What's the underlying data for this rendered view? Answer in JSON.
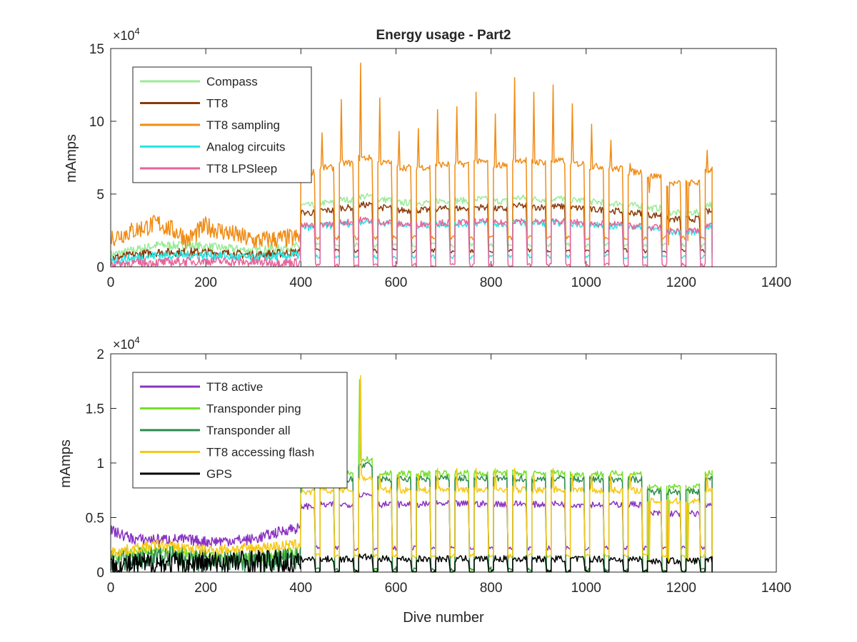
{
  "figure": {
    "xlabel": "Dive number"
  },
  "colors": {
    "compass": "#9aeb9a",
    "tt8": "#8a3b0a",
    "tt8_sampling": "#f08c16",
    "analog_circuits": "#27e6e6",
    "tt8_lpsleep": "#e8649a",
    "tt8_active": "#8a33c2",
    "transponder_ping": "#73e02a",
    "transponder_all": "#2e8b4f",
    "tt8_accessing_flash": "#f7c816",
    "gps": "#000000"
  },
  "chart_data": [
    {
      "type": "line",
      "title": "Energy usage - Part2",
      "xlabel": "",
      "ylabel": "mAmps",
      "exponent_label": "×10",
      "exponent_power": "4",
      "xlim": [
        0,
        1400
      ],
      "ylim": [
        0,
        15
      ],
      "xticks": [
        "0",
        "200",
        "400",
        "600",
        "800",
        "1000",
        "1200",
        "1400"
      ],
      "yticks": [
        "0",
        "5",
        "10",
        "15"
      ],
      "grid": false,
      "legend_position": "top-left",
      "cycle": {
        "start": 400,
        "end": 1265,
        "period": 40.5,
        "duty": 0.7,
        "peaks": [
          7.2,
          9.2,
          11.5,
          14,
          11.6,
          9.3,
          9.5,
          10.8,
          11,
          12,
          10.5,
          13,
          12,
          12.5,
          11.2,
          9.8,
          8.7,
          7.1,
          5.1,
          1.5,
          1.8,
          8,
          7.7,
          10.3
        ]
      },
      "series": [
        {
          "name": "Compass",
          "color_key": "compass",
          "pre": [
            [
              0,
              0.8
            ],
            [
              100,
              1.5
            ],
            [
              200,
              1.4
            ],
            [
              300,
              1.1
            ],
            [
              390,
              1.4
            ]
          ],
          "high": 4.2,
          "low": 1.5
        },
        {
          "name": "TT8",
          "color_key": "tt8",
          "pre": [
            [
              0,
              0.6
            ],
            [
              100,
              1.0
            ],
            [
              200,
              1.0
            ],
            [
              300,
              0.8
            ],
            [
              390,
              1.0
            ]
          ],
          "high": 3.7,
          "low": 1.1
        },
        {
          "name": "TT8 sampling",
          "color_key": "tt8_sampling",
          "pre": [
            [
              0,
              2.0
            ],
            [
              100,
              3.0
            ],
            [
              150,
              2.2
            ],
            [
              160,
              1.8
            ],
            [
              200,
              2.8
            ],
            [
              300,
              1.8
            ],
            [
              390,
              2.0
            ]
          ],
          "high": 6.5,
          "low": 2.0
        },
        {
          "name": "Analog circuits",
          "color_key": "analog_circuits",
          "pre": [
            [
              0,
              0.4
            ],
            [
              100,
              0.8
            ],
            [
              200,
              0.8
            ],
            [
              300,
              0.6
            ],
            [
              390,
              0.8
            ]
          ],
          "high": 2.7,
          "low": 0.7
        },
        {
          "name": "TT8 LPSleep",
          "color_key": "tt8_lpsleep",
          "pre": [
            [
              0,
              0.2
            ],
            [
              100,
              0.3
            ],
            [
              200,
              0.4
            ],
            [
              300,
              0.3
            ],
            [
              390,
              0.3
            ]
          ],
          "high": 2.8,
          "low": 0.1
        }
      ]
    },
    {
      "type": "line",
      "title": "",
      "xlabel": "Dive number",
      "ylabel": "mAmps",
      "exponent_label": "×10",
      "exponent_power": "4",
      "xlim": [
        0,
        1400
      ],
      "ylim": [
        0,
        2
      ],
      "xticks": [
        "0",
        "200",
        "400",
        "600",
        "800",
        "1000",
        "1200",
        "1400"
      ],
      "yticks": [
        "0",
        "0.5",
        "1",
        "1.5",
        "2"
      ],
      "grid": false,
      "legend_position": "top-left",
      "cycle": {
        "start": 400,
        "end": 1265,
        "period": 40.5,
        "duty": 0.7,
        "peaks": [
          0.75,
          0.85,
          0.9,
          1.8,
          0.9,
          0.9,
          0.9,
          0.95,
          0.95,
          0.95,
          0.95,
          0.95,
          0.9,
          0.95,
          0.9,
          0.9,
          0.9,
          0.9,
          0.1,
          0.1,
          0.1,
          0.9,
          0.9,
          0.95
        ]
      },
      "series": [
        {
          "name": "TT8 active",
          "color_key": "tt8_active",
          "pre": [
            [
              0,
              0.38
            ],
            [
              50,
              0.3
            ],
            [
              150,
              0.3
            ],
            [
              200,
              0.28
            ],
            [
              300,
              0.3
            ],
            [
              380,
              0.4
            ]
          ],
          "high": 0.62,
          "low": 0.22
        },
        {
          "name": "Transponder ping",
          "color_key": "transponder_ping",
          "pre": [
            [
              0,
              0.15
            ],
            [
              100,
              0.2
            ],
            [
              200,
              0.15
            ],
            [
              300,
              0.12
            ],
            [
              390,
              0.18
            ]
          ],
          "high": 0.9,
          "low": 0.0
        },
        {
          "name": "Transponder all",
          "color_key": "transponder_all",
          "pre": [
            [
              0,
              0.1
            ],
            [
              100,
              0.15
            ],
            [
              200,
              0.1
            ],
            [
              300,
              0.1
            ],
            [
              390,
              0.12
            ]
          ],
          "high": 0.85,
          "low": 0.02
        },
        {
          "name": "TT8 accessing flash",
          "color_key": "tt8_accessing_flash",
          "pre": [
            [
              0,
              0.18
            ],
            [
              100,
              0.25
            ],
            [
              200,
              0.2
            ],
            [
              300,
              0.22
            ],
            [
              390,
              0.25
            ]
          ],
          "high": 0.75,
          "low": 0.15
        },
        {
          "name": "GPS",
          "color_key": "gps",
          "pre": [
            [
              0,
              0.05
            ],
            [
              100,
              0.08
            ],
            [
              200,
              0.08
            ],
            [
              300,
              0.1
            ],
            [
              390,
              0.08
            ]
          ],
          "high": 0.12,
          "low": 0.0
        }
      ]
    }
  ]
}
